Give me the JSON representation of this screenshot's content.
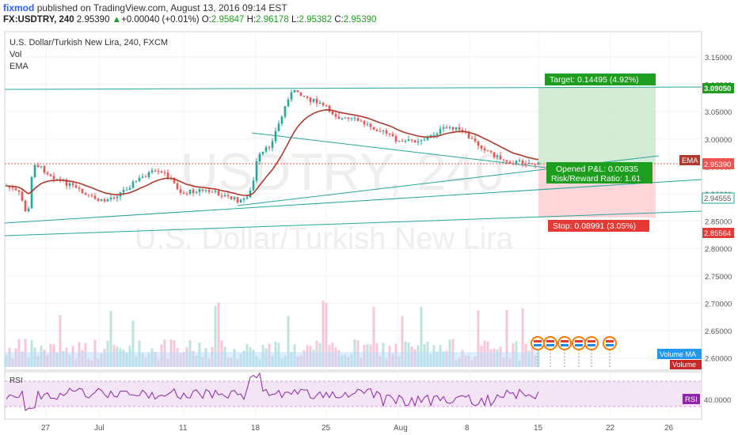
{
  "header": {
    "author": "fixmod",
    "published": "published on TradingView.com, August 13, 2016 09:14 EST",
    "symbol_line": "FX:USDTRY, 240",
    "last": "2.95390",
    "change": "+0.00040 (+0.01%)",
    "ohlc": {
      "o_label": "O:",
      "o": "2.95847",
      "h_label": "H:",
      "h": "2.96178",
      "l_label": "L:",
      "l": "2.95382",
      "c_label": "C:",
      "c": "2.95390"
    }
  },
  "pane": {
    "title": "U.S. Dollar/Turkish New Lira, 240, FXCM",
    "vol_label": "Vol",
    "ema_label": "EMA",
    "watermark_symbol": "USDTRY, 240",
    "watermark_name": "U.S. Dollar/Turkish New Lira"
  },
  "position": {
    "target": "Target: 0.14495 (4.92%)",
    "opened": "Opened P&L: 0.00835",
    "rr": "Risk/Reward Ratio: 1.61",
    "stop": "Stop: 0.08991 (3.05%)"
  },
  "price_axis": {
    "ticks": [
      "3.15000",
      "3.10000",
      "3.05000",
      "3.00000",
      "2.95000",
      "2.90000",
      "2.85000",
      "2.80000",
      "2.75000",
      "2.70000",
      "2.65000",
      "2.60000"
    ],
    "tags": {
      "target": "3.09050",
      "ema_label": "EMA",
      "last": "2.95390",
      "entry": "2.94555",
      "stop": "2.85564",
      "vol_ma": "Volume MA",
      "volume": "Volume"
    }
  },
  "rsi": {
    "label": "RSI",
    "tag": "RSI",
    "tick": "40.0000"
  },
  "time_axis": [
    "27",
    "Jul",
    "11",
    "18",
    "25",
    "Aug",
    "8",
    "15",
    "22",
    "26"
  ],
  "colors": {
    "up": "#26a69a",
    "down": "#ef5350",
    "ema": "#b03a2e",
    "target_zone": "#c8e6c9",
    "stop_zone": "#ffcdd2",
    "rsi": "#8e24aa",
    "trend": "#26a69a"
  }
}
